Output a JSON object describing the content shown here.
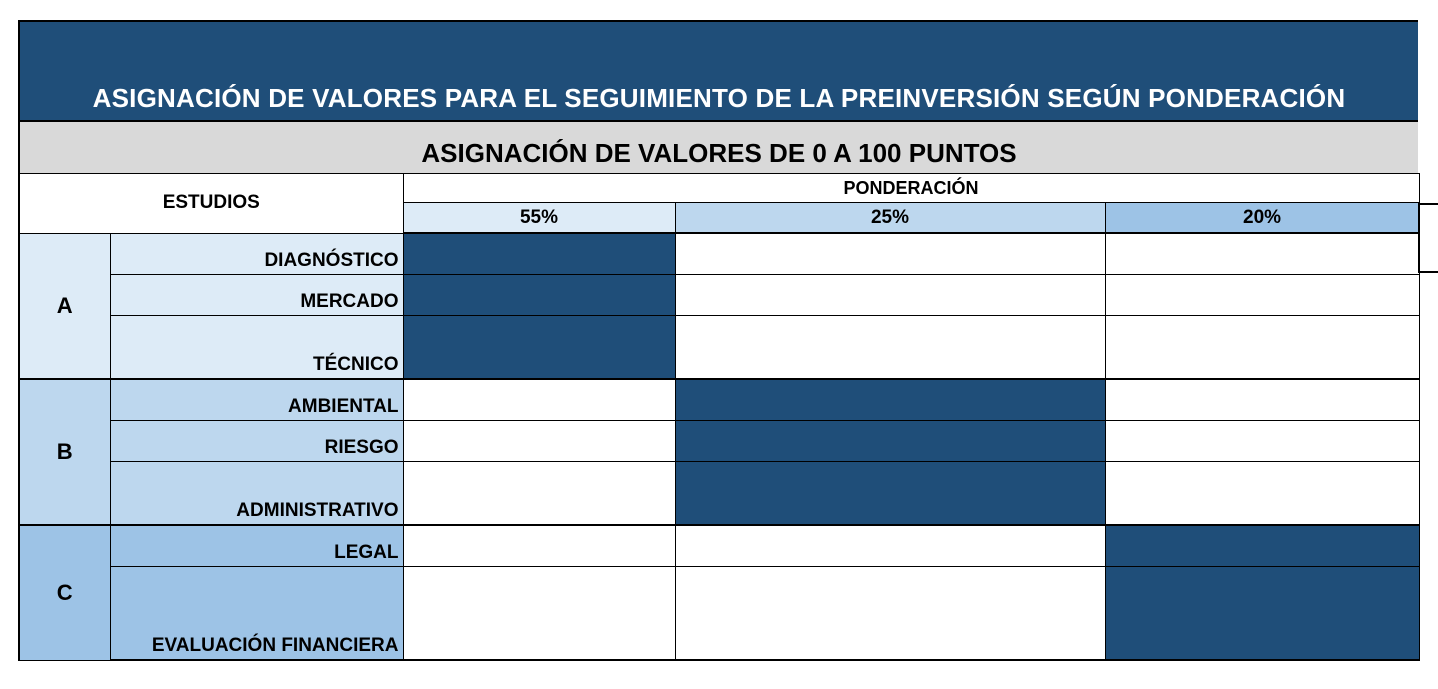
{
  "title": "ASIGNACIÓN DE VALORES PARA EL SEGUIMIENTO DE LA PREINVERSIÓN SEGÚN PONDERACIÓN",
  "subtitle": "ASIGNACIÓN DE VALORES DE 0 A 100 PUNTOS",
  "header": {
    "studies": "ESTUDIOS",
    "weighting": "PONDERACIÓN",
    "weights": [
      "55%",
      "25%",
      "20%"
    ]
  },
  "groups": [
    {
      "letter": "A",
      "studies": [
        "DIAGNÓSTICO",
        "MERCADO",
        "TÉCNICO"
      ]
    },
    {
      "letter": "B",
      "studies": [
        "AMBIENTAL",
        "RIESGO",
        "ADMINISTRATIVO"
      ]
    },
    {
      "letter": "C",
      "studies": [
        "LEGAL",
        "EVALUACIÓN FINANCIERA"
      ]
    }
  ],
  "colors": {
    "dark_blue": "#1f4e79",
    "light_blue": "#ddebf7",
    "mid_blue": "#bdd7ee",
    "blue": "#9dc3e6",
    "gray": "#d9d9d9"
  }
}
